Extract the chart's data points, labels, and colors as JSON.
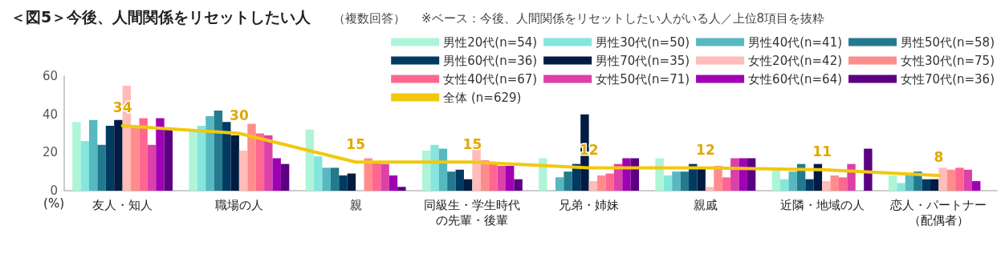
{
  "chart_data": {
    "type": "bar",
    "title": "＜図5＞今後、人間関係をリセットしたい人",
    "subtitle": "（複数回答）",
    "annotations": [
      "※ベース：今後、人間関係をリセットしたい人がいる人／上位8項目を抜粋"
    ],
    "ylabel": "(%)",
    "categories": [
      "友人・知人",
      "職場の人",
      "親",
      "同級生・学生時代の先輩・後輩",
      "兄弟・姉妹",
      "親戚",
      "近隣・地域の人",
      "恋人・パートナー（配偶者）"
    ],
    "ylim": [
      0,
      60
    ],
    "yticks": [
      0,
      20,
      40,
      60
    ],
    "grid": false,
    "legend": "top right",
    "marker": "none",
    "series": [
      {
        "name": "男性20代(n=54)",
        "color": "#aef5d8",
        "values": [
          36,
          31,
          32,
          21,
          17,
          17,
          11,
          8
        ]
      },
      {
        "name": "男性30代(n=50)",
        "color": "#84e6dd",
        "values": [
          26,
          34,
          18,
          24,
          0,
          8,
          6,
          4
        ]
      },
      {
        "name": "男性40代(n=41)",
        "color": "#56b8c0",
        "values": [
          37,
          39,
          12,
          22,
          7,
          10,
          10,
          8
        ]
      },
      {
        "name": "男性50代(n=58)",
        "color": "#237a8e",
        "values": [
          24,
          42,
          12,
          10,
          10,
          10,
          14,
          10
        ]
      },
      {
        "name": "男性60代(n=36)",
        "color": "#003a60",
        "values": [
          34,
          36,
          8,
          11,
          14,
          14,
          6,
          6
        ]
      },
      {
        "name": "男性70代(n=35)",
        "color": "#001c40",
        "values": [
          37,
          29,
          9,
          6,
          40,
          12,
          14,
          6
        ]
      },
      {
        "name": "女性20代(n=42)",
        "color": "#ffbcb8",
        "values": [
          55,
          21,
          null,
          24,
          5,
          2,
          5,
          12
        ]
      },
      {
        "name": "女性30代(n=75)",
        "color": "#ff8c8c",
        "values": [
          33,
          35,
          17,
          16,
          8,
          13,
          8,
          11
        ]
      },
      {
        "name": "女性40代(n=67)",
        "color": "#ff6690",
        "values": [
          38,
          30,
          15,
          14,
          9,
          7,
          7,
          12
        ]
      },
      {
        "name": "女性50代(n=71)",
        "color": "#dd40a8",
        "values": [
          24,
          29,
          14,
          13,
          14,
          17,
          14,
          11
        ]
      },
      {
        "name": "女性60代(n=64)",
        "color": "#a000b4",
        "values": [
          38,
          17,
          8,
          13,
          17,
          17,
          null,
          5
        ]
      },
      {
        "name": "女性70代(n=36)",
        "color": "#5c0082",
        "values": [
          33,
          14,
          2,
          6,
          17,
          17,
          22,
          0
        ]
      },
      {
        "name": "全体 (n=629)",
        "type": "line",
        "color": "#f2c80f",
        "values": [
          34,
          30,
          15,
          15,
          12,
          12,
          11,
          8
        ],
        "value_labels": [
          "34",
          "30",
          "15",
          "15",
          "12",
          "12",
          "11",
          "8"
        ]
      }
    ]
  }
}
